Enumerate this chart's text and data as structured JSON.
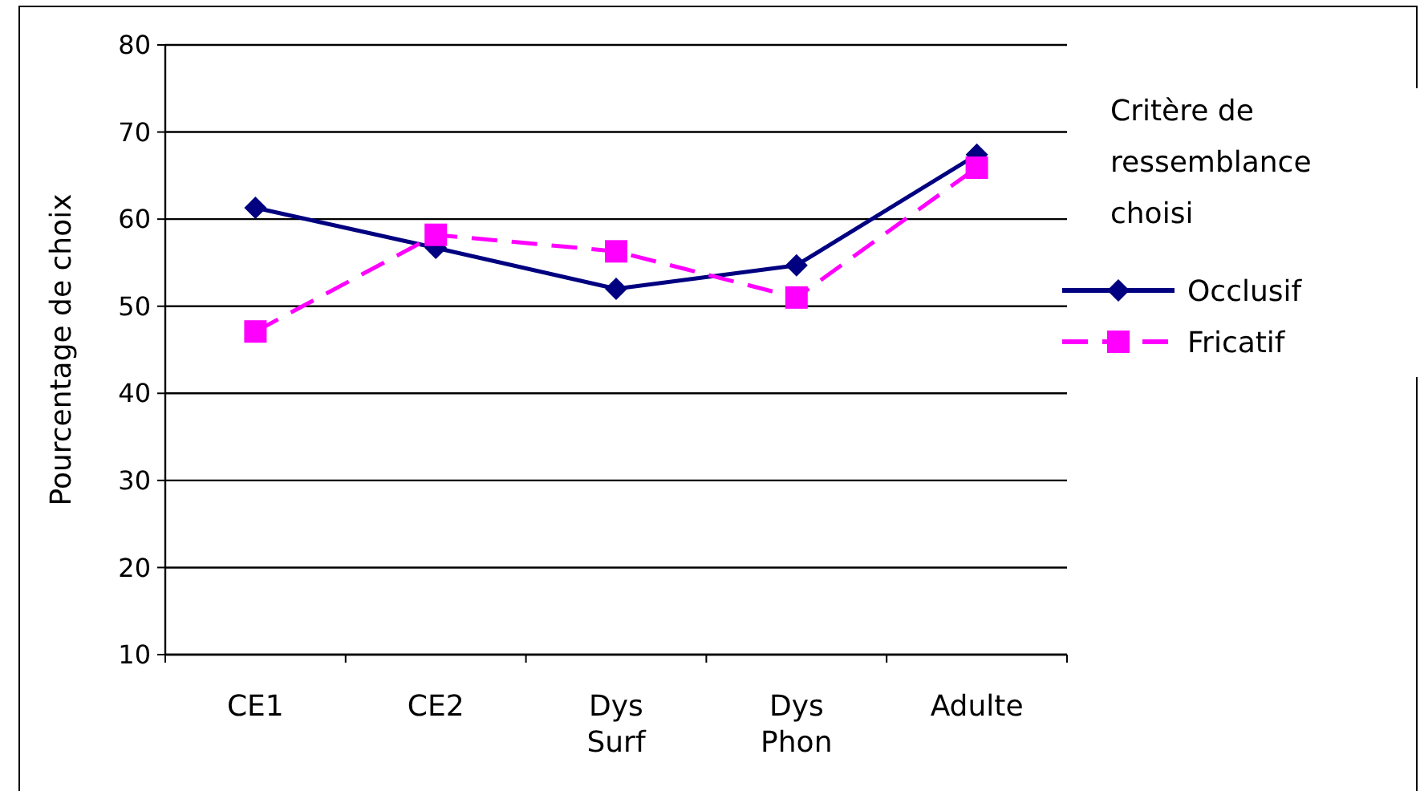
{
  "chart_data": {
    "type": "line",
    "ylabel": "Pourcentage de choix",
    "legend_title": "Critère de ressemblance choisi",
    "categories": [
      "CE1",
      "CE2",
      "Dys Surf",
      "Dys Phon",
      "Adulte"
    ],
    "series": [
      {
        "name": "Occlusif",
        "color": "#000080",
        "marker": "diamond",
        "line_style": "solid",
        "values": [
          61.3,
          56.7,
          52,
          54.7,
          67.4
        ]
      },
      {
        "name": "Fricatif",
        "color": "#ff00ff",
        "marker": "square",
        "line_style": "dashed",
        "values": [
          47.1,
          58.2,
          56.3,
          51,
          65.9
        ]
      }
    ],
    "ylim": [
      10,
      80
    ],
    "yticks": [
      10,
      20,
      30,
      40,
      50,
      60,
      70,
      80
    ],
    "grid": "y",
    "legend": "right"
  }
}
